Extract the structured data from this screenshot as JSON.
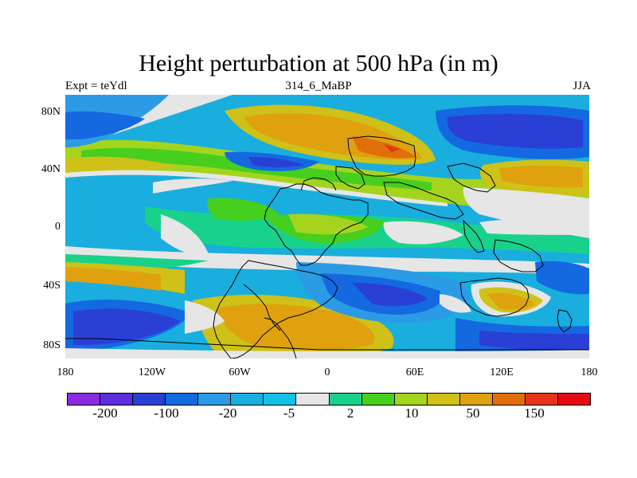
{
  "title": "Height perturbation at 500 hPa (in m)",
  "left_label": "Expt = teYdl",
  "center_label": "314_6_MaBP",
  "right_label": "JJA",
  "lat_ticks": [
    "80N",
    "40N",
    "0",
    "40S",
    "80S"
  ],
  "lon_ticks": [
    "180",
    "120W",
    "60W",
    "0",
    "60E",
    "120E",
    "180"
  ],
  "colorbar": {
    "colors": [
      "#8a2be2",
      "#5b2ee0",
      "#2a3fd6",
      "#1469e0",
      "#2b9be6",
      "#19aede",
      "#12c2e6",
      "#e6e6e6",
      "#18d28c",
      "#46cf1e",
      "#a5d41e",
      "#cfc118",
      "#dfa20e",
      "#e06e0a",
      "#e8321a",
      "#e60b12"
    ],
    "labels": [
      "-200",
      "-100",
      "-20",
      "-5",
      "2",
      "10",
      "50",
      "150"
    ]
  }
}
